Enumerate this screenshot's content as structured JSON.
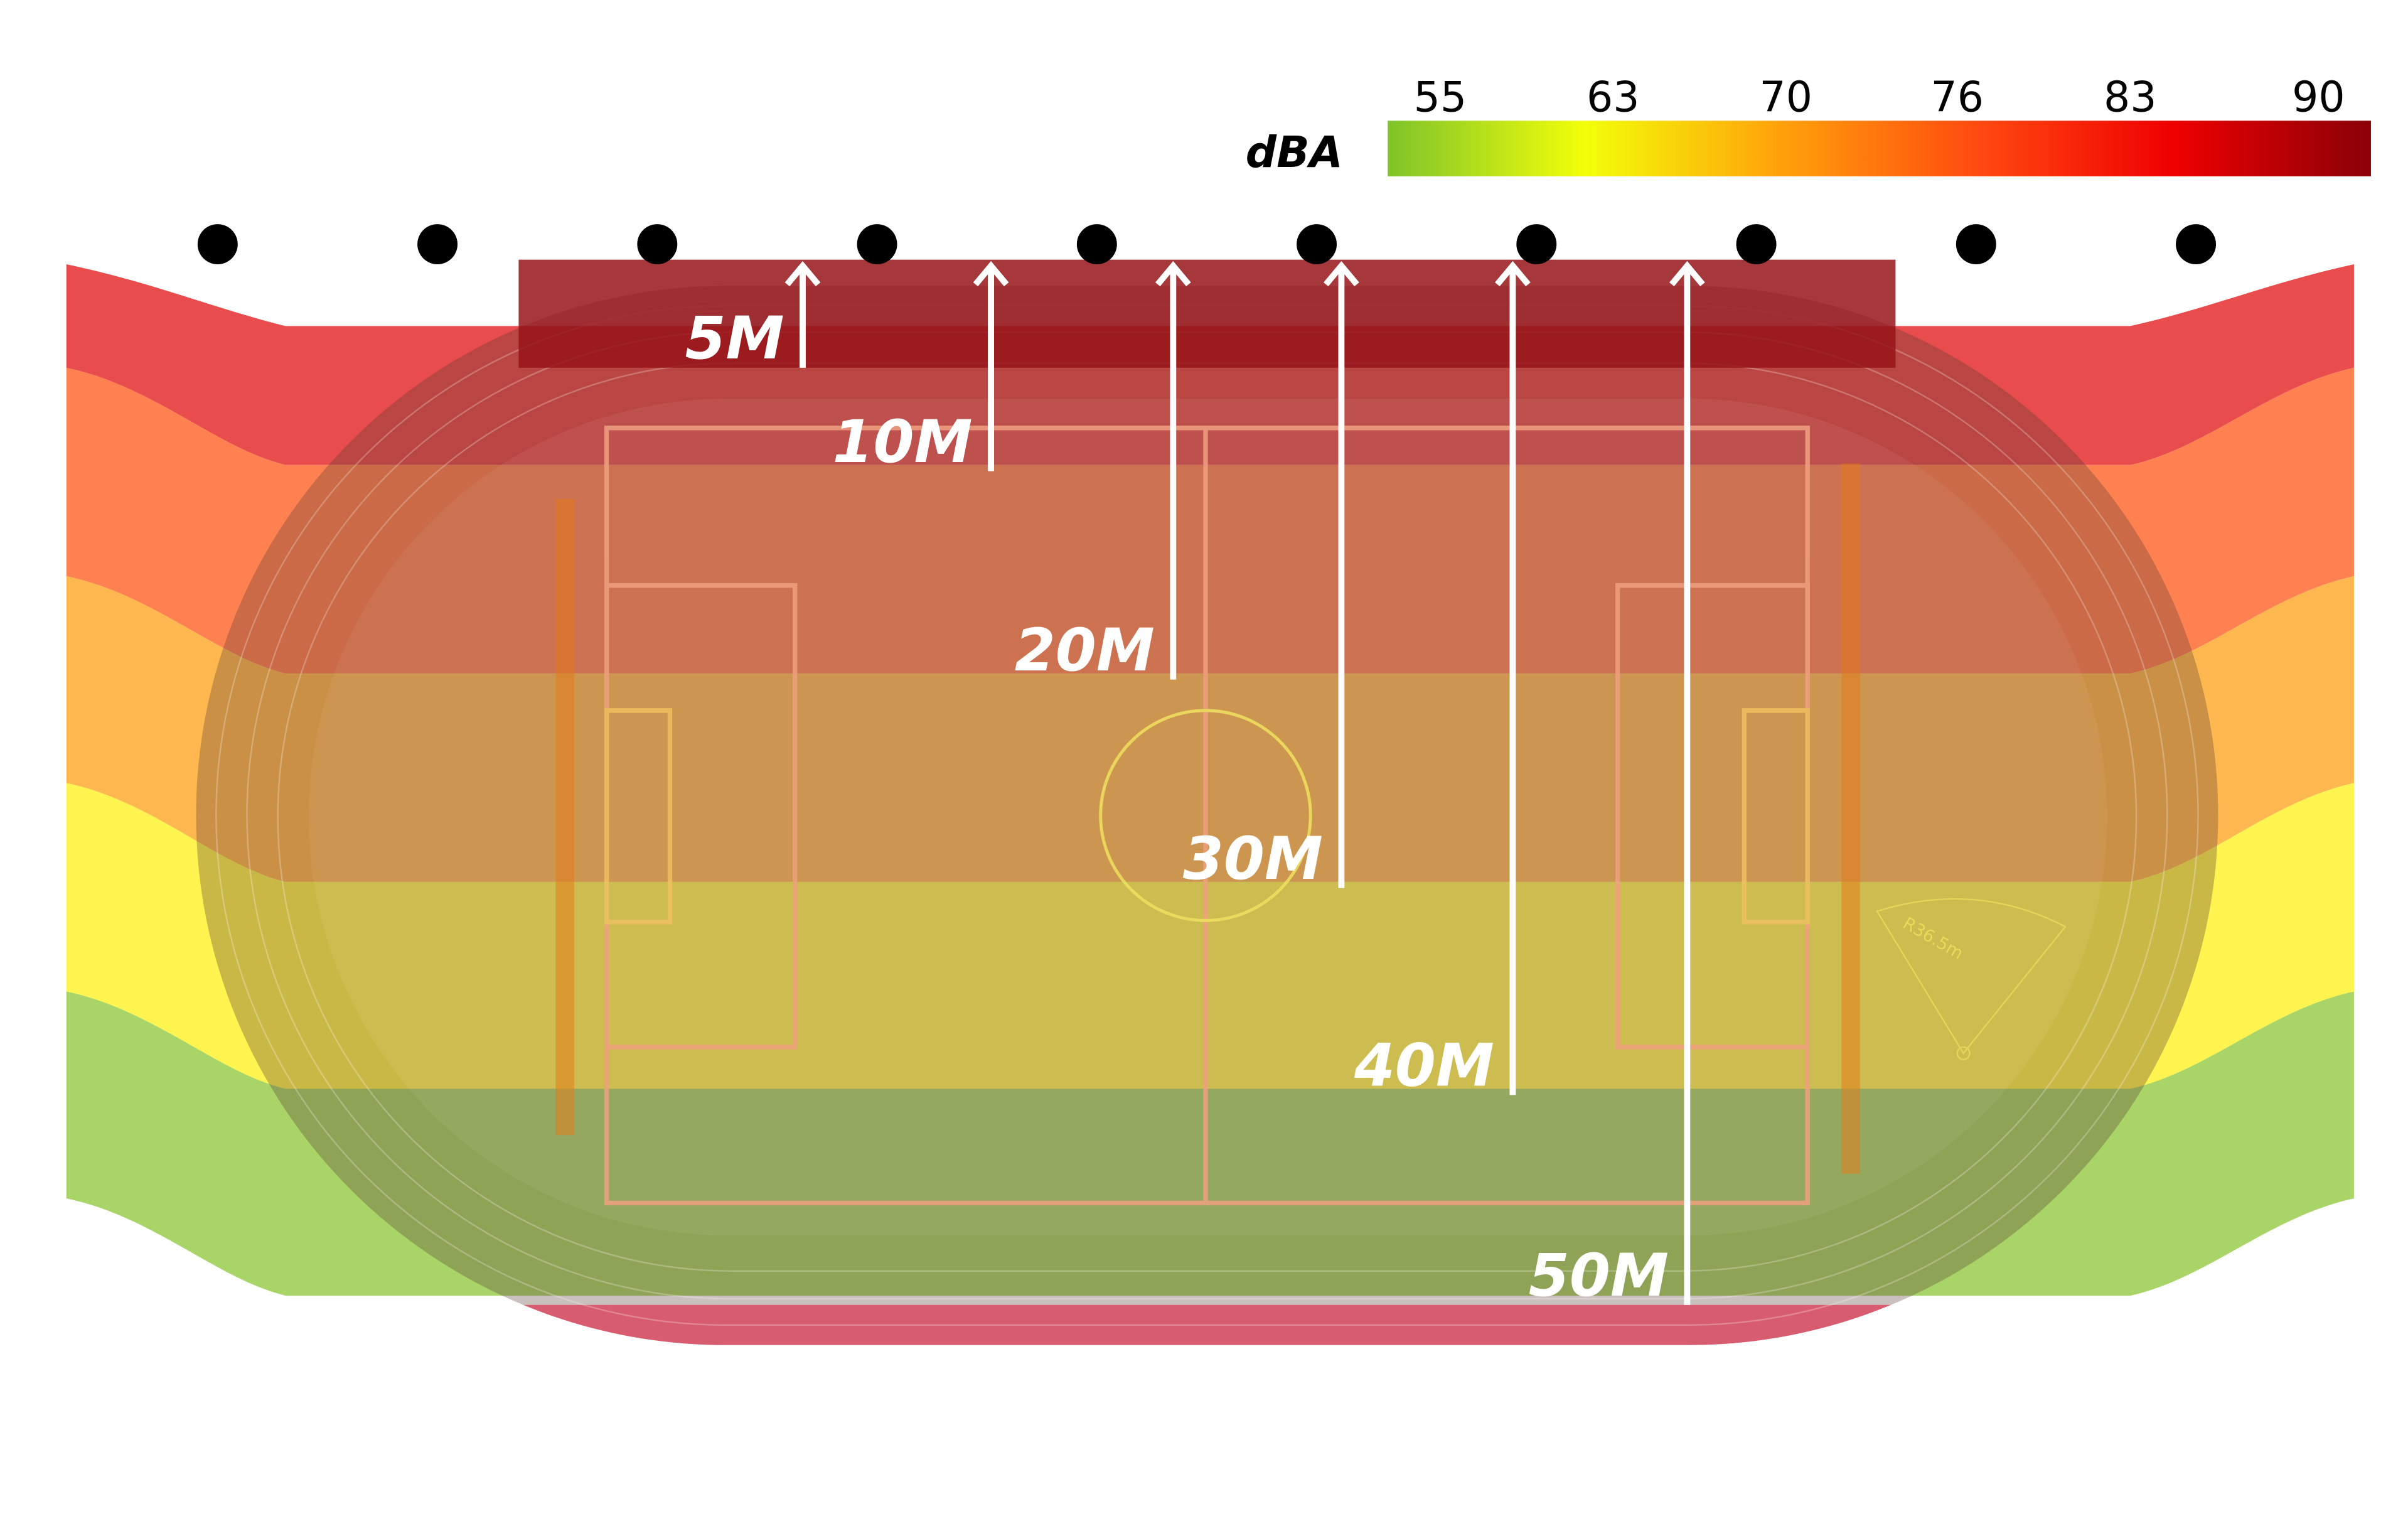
{
  "legend": {
    "unit": "dBA",
    "ticks": [
      "55",
      "63",
      "70",
      "76",
      "83",
      "90"
    ],
    "gradient_colors": [
      "#7ec32a",
      "#f2ff0a",
      "#ffa10a",
      "#ff4a10",
      "#ee0000",
      "#8a0008"
    ]
  },
  "band_colors": [
    "#e84c4c",
    "#ff8050",
    "#ffb850",
    "#fff450",
    "#a8d468"
  ],
  "speakers": {
    "count": 10,
    "icon": "speaker-dot-icon"
  },
  "distances": [
    "5M",
    "10M",
    "20M",
    "30M",
    "40M",
    "50M"
  ],
  "annotation": "R36.5m"
}
